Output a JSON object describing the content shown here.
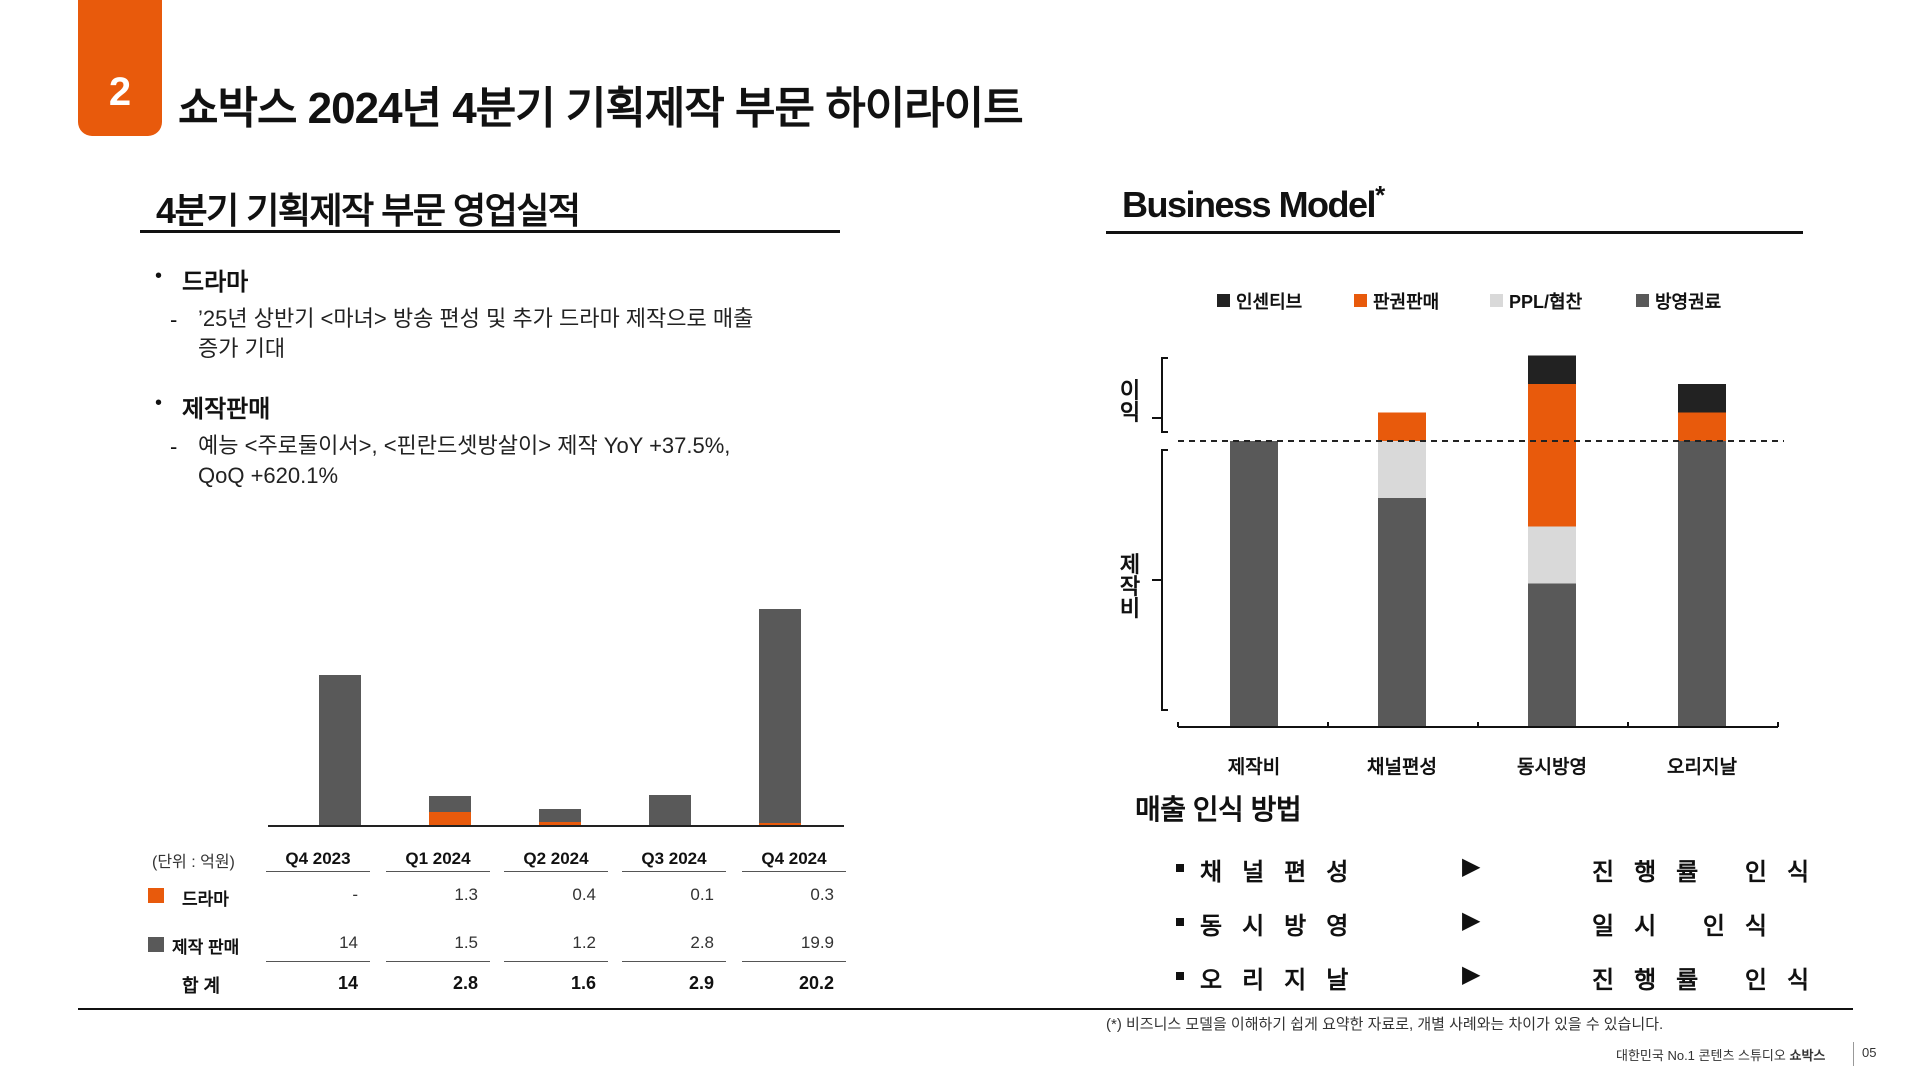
{
  "header": {
    "section_number": "2",
    "title": "쇼박스 2024년 4분기 기획제작 부문 하이라이트"
  },
  "left": {
    "heading": "4분기 기획제작 부문 영업실적",
    "bullets": [
      {
        "title": "드라마",
        "detail_line1": "’25년 상반기 <마녀> 방송 편성 및 추가 드라마 제작으로 매출",
        "detail_line2": "증가 기대"
      },
      {
        "title": "제작판매",
        "detail_line1": "예능 <주로둘이서>, <핀란드셋방살이> 제작 YoY +37.5%,",
        "detail_line2": "QoQ +620.1%"
      }
    ],
    "table": {
      "unit_label": "(단위 : 억원)",
      "columns": [
        "Q4 2023",
        "Q1 2024",
        "Q2 2024",
        "Q3 2024",
        "Q4 2024"
      ],
      "rows": [
        {
          "label": "드라마",
          "values": [
            "-",
            "1.3",
            "0.4",
            "0.1",
            "0.3"
          ]
        },
        {
          "label": "제작 판매",
          "values": [
            "14",
            "1.5",
            "1.2",
            "2.8",
            "19.9"
          ]
        },
        {
          "label": "합 계",
          "values": [
            "14",
            "2.8",
            "1.6",
            "2.9",
            "20.2"
          ]
        }
      ]
    }
  },
  "chart_data": [
    {
      "type": "bar",
      "categories": [
        "Q4 2023",
        "Q1 2024",
        "Q2 2024",
        "Q3 2024",
        "Q4 2024"
      ],
      "series": [
        {
          "name": "제작 판매",
          "values": [
            14,
            1.5,
            1.2,
            2.8,
            19.9
          ]
        },
        {
          "name": "드라마",
          "values": [
            0,
            1.3,
            0.4,
            0.1,
            0.3
          ]
        }
      ],
      "stacked": true,
      "colors": {
        "제작 판매": "#595959",
        "드라마": "#e85a0c"
      },
      "title": "",
      "xlabel": "",
      "ylabel": ""
    },
    {
      "type": "bar",
      "categories": [
        "제작비",
        "채널편성",
        "동시방영",
        "오리지날"
      ],
      "stacked": true,
      "series": [
        {
          "name": "방영권료",
          "values": [
            10,
            8,
            5,
            10
          ]
        },
        {
          "name": "PPL/협찬",
          "values": [
            0,
            2,
            2,
            0
          ]
        },
        {
          "name": "판권판매",
          "values": [
            0,
            1,
            5,
            1
          ]
        },
        {
          "name": "인센티브",
          "values": [
            0,
            0,
            1,
            1
          ]
        }
      ],
      "colors": {
        "인센티브": "#222222",
        "판권판매": "#e85a0c",
        "PPL/협찬": "#d9d9d9",
        "방영권료": "#595959"
      },
      "legend": [
        "인센티브",
        "판권판매",
        "PPL/협찬",
        "방영권료"
      ],
      "legend_position": "top",
      "side_labels": [
        "이익",
        "제작비"
      ],
      "reference_line": "dashed",
      "title": "",
      "xlabel": "",
      "ylabel": ""
    }
  ],
  "right": {
    "heading": "Business Model",
    "heading_mark": "*",
    "side_label_top": [
      "이",
      "익"
    ],
    "side_label_bottom": [
      "제",
      "작",
      "비"
    ],
    "revenue": {
      "title": "매출 인식 방법",
      "items": [
        {
          "left": "채널편성",
          "arrow": "▶",
          "right": "진행률 인식"
        },
        {
          "left": "동시방영",
          "arrow": "▶",
          "right": "일시 인식"
        },
        {
          "left": "오리지날",
          "arrow": "▶",
          "right": "진행률 인식"
        }
      ]
    }
  },
  "footnote": "(*) 비즈니스 모델을 이해하기 쉽게 요약한 자료로, 개별 사례와는 차이가 있을 수 있습니다.",
  "footer": {
    "tagline": "대한민국 No.1 콘텐츠 스튜디오",
    "brand": "쇼박스",
    "page": "05"
  }
}
